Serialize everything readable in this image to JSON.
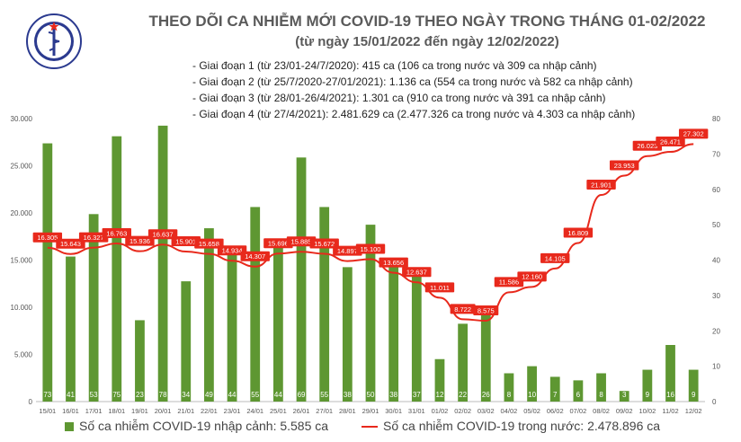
{
  "logo": {
    "text": "BỘ Y TẾ",
    "subtext": "MINISTRY OF HEALTH"
  },
  "header": {
    "title": "THEO DÕI CA NHIỄM MỚI COVID-19 THEO NGÀY TRONG THÁNG 01-02/2022",
    "subtitle": "(từ ngày 15/01/2022 đến ngày 12/02/2022)"
  },
  "notes": [
    "- Giai đoạn 1 (từ 23/01-24/7/2020): 415 ca (106 ca trong nước và 309 ca nhập cảnh)",
    "- Giai đoạn 2 (từ 25/7/2020-27/01/2021): 1.136 ca (554 ca trong nước và 582 ca nhập cảnh)",
    "- Giai đoạn 3 (từ 28/01-26/4/2021): 1.301 ca (910 ca trong nước và 391 ca nhập cảnh)",
    "- Giai đoạn 4 (từ 27/4/2021): 2.481.629 ca (2.477.326 ca trong nước và 4.303 ca nhập cảnh)"
  ],
  "legend": {
    "bars": "Số ca nhiễm COVID-19 nhập cảnh: 5.585 ca",
    "line": "Số ca nhiễm COVID-19 trong nước: 2.478.896 ca"
  },
  "colors": {
    "bar": "#5e9732",
    "line": "#e8291c",
    "label_bg": "#e8291c",
    "axis_text": "#555555"
  },
  "chart_data": {
    "type": "bar+line",
    "categories": [
      "15/01",
      "16/01",
      "17/01",
      "18/01",
      "19/01",
      "20/01",
      "21/01",
      "22/01",
      "23/01",
      "24/01",
      "25/01",
      "26/01",
      "27/01",
      "28/01",
      "29/01",
      "30/01",
      "31/01",
      "01/02",
      "02/02",
      "03/02",
      "04/02",
      "05/02",
      "06/02",
      "07/02",
      "08/02",
      "09/02",
      "10/02",
      "11/02",
      "12/02"
    ],
    "left_axis": {
      "ylim": [
        0,
        30000
      ],
      "ticks": [
        "0",
        "5.000",
        "10.000",
        "15.000",
        "20.000",
        "25.000",
        "30.000"
      ]
    },
    "right_axis": {
      "ylim": [
        0,
        80
      ],
      "ticks": [
        "0",
        "10",
        "20",
        "30",
        "40",
        "50",
        "60",
        "70",
        "80"
      ]
    },
    "series": [
      {
        "name": "Số ca nhiễm COVID-19 nhập cảnh",
        "type": "bar",
        "axis": "right",
        "values": [
          73,
          41,
          53,
          75,
          23,
          78,
          34,
          49,
          44,
          55,
          44,
          69,
          55,
          38,
          50,
          38,
          37,
          12,
          22,
          26,
          8,
          10,
          7,
          6,
          8,
          3,
          9,
          16,
          9
        ],
        "labels": [
          "73",
          "41",
          "53",
          "75",
          "23",
          "78",
          "34",
          "49",
          "44",
          "55",
          "44",
          "69",
          "55",
          "38",
          "50",
          "38",
          "37",
          "12",
          "22",
          "26",
          "8",
          "10",
          "7",
          "6",
          "8",
          "3",
          "9",
          "16",
          "9"
        ]
      },
      {
        "name": "Số ca nhiễm COVID-19 trong nước",
        "type": "line",
        "axis": "left",
        "values": [
          16305,
          15643,
          16327,
          16763,
          15936,
          16637,
          15901,
          15658,
          14934,
          14307,
          15696,
          15885,
          15672,
          14897,
          15100,
          13656,
          12637,
          11011,
          8722,
          8575,
          11586,
          12160,
          14105,
          16809,
          21901,
          23953,
          26023,
          26471,
          27302
        ],
        "labels": [
          "16.305",
          "15.643",
          "16.327",
          "16.763",
          "15.936",
          "16.637",
          "15.901",
          "15.658",
          "14.934",
          "14.307",
          "15.696",
          "15.885",
          "15.672",
          "14.897",
          "15.100",
          "13.656",
          "12.637",
          "11.011",
          "8.722",
          "8.575",
          "11.586",
          "12.160",
          "14.105",
          "16.809",
          "21.901",
          "23.953",
          "26.023",
          "26.471",
          "27.302"
        ]
      }
    ]
  }
}
